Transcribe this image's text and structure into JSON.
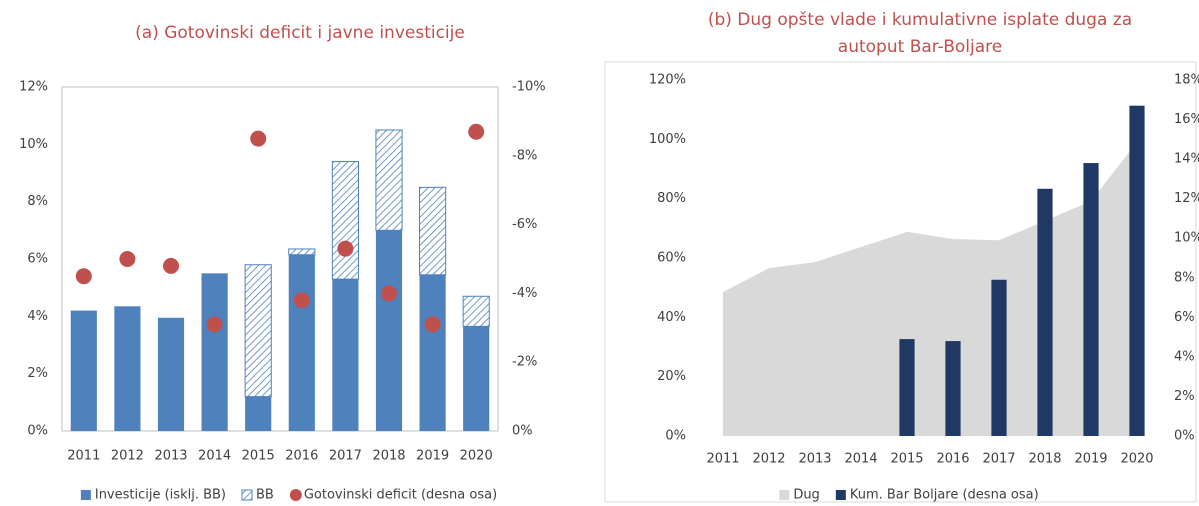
{
  "chart_data": [
    {
      "type": "bar",
      "title": [
        "(a) Gotovinski deficit i javne investicije"
      ],
      "categories": [
        "2011",
        "2012",
        "2013",
        "2014",
        "2015",
        "2016",
        "2017",
        "2018",
        "2019",
        "2020"
      ],
      "series": [
        {
          "name": "Investicije (isklj. BB)",
          "type": "bar",
          "color": "#4f81bd",
          "values": [
            4.2,
            4.35,
            3.95,
            5.5,
            1.2,
            6.15,
            5.3,
            7.0,
            5.45,
            3.65
          ]
        },
        {
          "name": "BB",
          "type": "bar",
          "hatch": true,
          "color": "#4f81bd",
          "values": [
            0,
            0,
            0,
            0,
            4.6,
            0.2,
            4.1,
            3.5,
            3.05,
            1.05
          ]
        },
        {
          "name": "Gotovinski deficit (desna osa)",
          "type": "scatter",
          "axis": "y2",
          "color": "#c0504d",
          "values": [
            -4.5,
            -5.0,
            -4.8,
            -3.1,
            -8.5,
            -3.8,
            -5.3,
            -4.0,
            -3.1,
            -8.7
          ]
        }
      ],
      "ylim": [
        0,
        12
      ],
      "yticks": [
        {
          "value": 0,
          "label": "0%"
        },
        {
          "value": 2,
          "label": "2%"
        },
        {
          "value": 4,
          "label": "4%"
        },
        {
          "value": 6,
          "label": "6%"
        },
        {
          "value": 8,
          "label": "8%"
        },
        {
          "value": 10,
          "label": "10%"
        },
        {
          "value": 12,
          "label": "12%"
        }
      ],
      "y2lim": [
        0,
        -10
      ],
      "y2ticks": [
        {
          "value": 0,
          "label": "0%"
        },
        {
          "value": -2,
          "label": "-2%"
        },
        {
          "value": -4,
          "label": "-4%"
        },
        {
          "value": -6,
          "label": "-6%"
        },
        {
          "value": -8,
          "label": "-8%"
        },
        {
          "value": -10,
          "label": "-10%"
        }
      ]
    },
    {
      "type": "area",
      "title": [
        "(b) Dug opšte vlade i kumulativne isplate duga za",
        "autoput Bar-Boljare"
      ],
      "categories": [
        "2011",
        "2012",
        "2013",
        "2014",
        "2015",
        "2016",
        "2017",
        "2018",
        "2019",
        "2020"
      ],
      "series": [
        {
          "name": "Dug",
          "type": "area",
          "color": "#d9d9d9",
          "values": [
            48.5,
            56.6,
            58.6,
            63.7,
            68.8,
            66.4,
            66,
            72.5,
            79.2,
            99
          ]
        },
        {
          "name": "Kum. Bar Boljare (desna osa)",
          "type": "bar",
          "axis": "y2",
          "color": "#1f3864",
          "values": [
            null,
            null,
            null,
            null,
            4.9,
            4.8,
            7.9,
            12.5,
            13.8,
            16.7
          ]
        }
      ],
      "ylim": [
        0,
        120
      ],
      "yticks": [
        {
          "value": 0,
          "label": "0%"
        },
        {
          "value": 20,
          "label": "20%"
        },
        {
          "value": 40,
          "label": "40%"
        },
        {
          "value": 60,
          "label": "60%"
        },
        {
          "value": 80,
          "label": "80%"
        },
        {
          "value": 100,
          "label": "100%"
        },
        {
          "value": 120,
          "label": "120%"
        }
      ],
      "y2lim": [
        0,
        18
      ],
      "y2ticks": [
        {
          "value": 0,
          "label": "0%"
        },
        {
          "value": 2,
          "label": "2%"
        },
        {
          "value": 4,
          "label": "4%"
        },
        {
          "value": 6,
          "label": "6%"
        },
        {
          "value": 8,
          "label": "8%"
        },
        {
          "value": 10,
          "label": "10%"
        },
        {
          "value": 12,
          "label": "12%"
        },
        {
          "value": 14,
          "label": "14%"
        },
        {
          "value": 16,
          "label": "16%"
        },
        {
          "value": 18,
          "label": "18%"
        }
      ]
    }
  ]
}
